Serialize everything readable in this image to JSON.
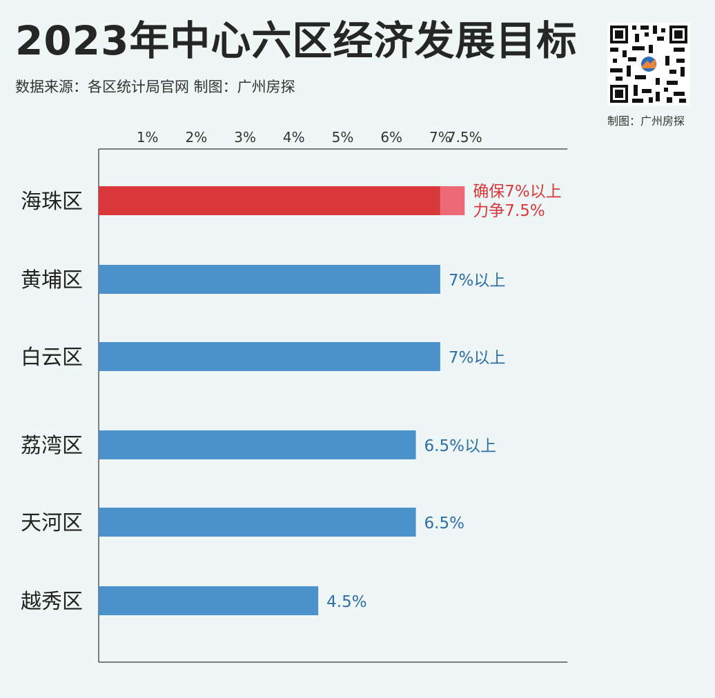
{
  "header": {
    "title": "2023年中心六区经济发展目标",
    "subtitle": "数据来源：各区统计局官网  制图：广州房探"
  },
  "qr": {
    "icon": "qr-code-icon",
    "caption": "制图：广州房探"
  },
  "colors": {
    "highlight": "#d9383a",
    "highlight_extra": "#ec6a78",
    "bar": "#4b92cd",
    "highlight_label": "#d9383a",
    "label": "#2e6ea8",
    "axis": "#555555",
    "background": "#eef6f6"
  },
  "chart_data": {
    "type": "bar",
    "orientation": "horizontal",
    "title": "2023年中心六区经济发展目标",
    "xlim": [
      0,
      7.5
    ],
    "x_ticks": [
      {
        "value": 1,
        "label": "1%"
      },
      {
        "value": 2,
        "label": "2%"
      },
      {
        "value": 3,
        "label": "3%"
      },
      {
        "value": 4,
        "label": "4%"
      },
      {
        "value": 5,
        "label": "5%"
      },
      {
        "value": 6,
        "label": "6%"
      },
      {
        "value": 7,
        "label": "7%"
      },
      {
        "value": 7.5,
        "label": "7.5%"
      }
    ],
    "axis_position": "top",
    "grid": false,
    "legend": "none",
    "categories": [
      "海珠区",
      "黄埔区",
      "白云区",
      "荔湾区",
      "天河区",
      "越秀区"
    ],
    "values": [
      7,
      7,
      7,
      6.5,
      6.5,
      4.5
    ],
    "extra": [
      {
        "category": "海珠区",
        "from": 7,
        "to": 7.5
      }
    ],
    "data_labels": [
      [
        "确保7%以上",
        "力争7.5%"
      ],
      [
        "7%以上"
      ],
      [
        "7%以上"
      ],
      [
        "6.5%以上"
      ],
      [
        "6.5%"
      ],
      [
        "4.5%"
      ]
    ],
    "highlighted_category": "海珠区"
  }
}
